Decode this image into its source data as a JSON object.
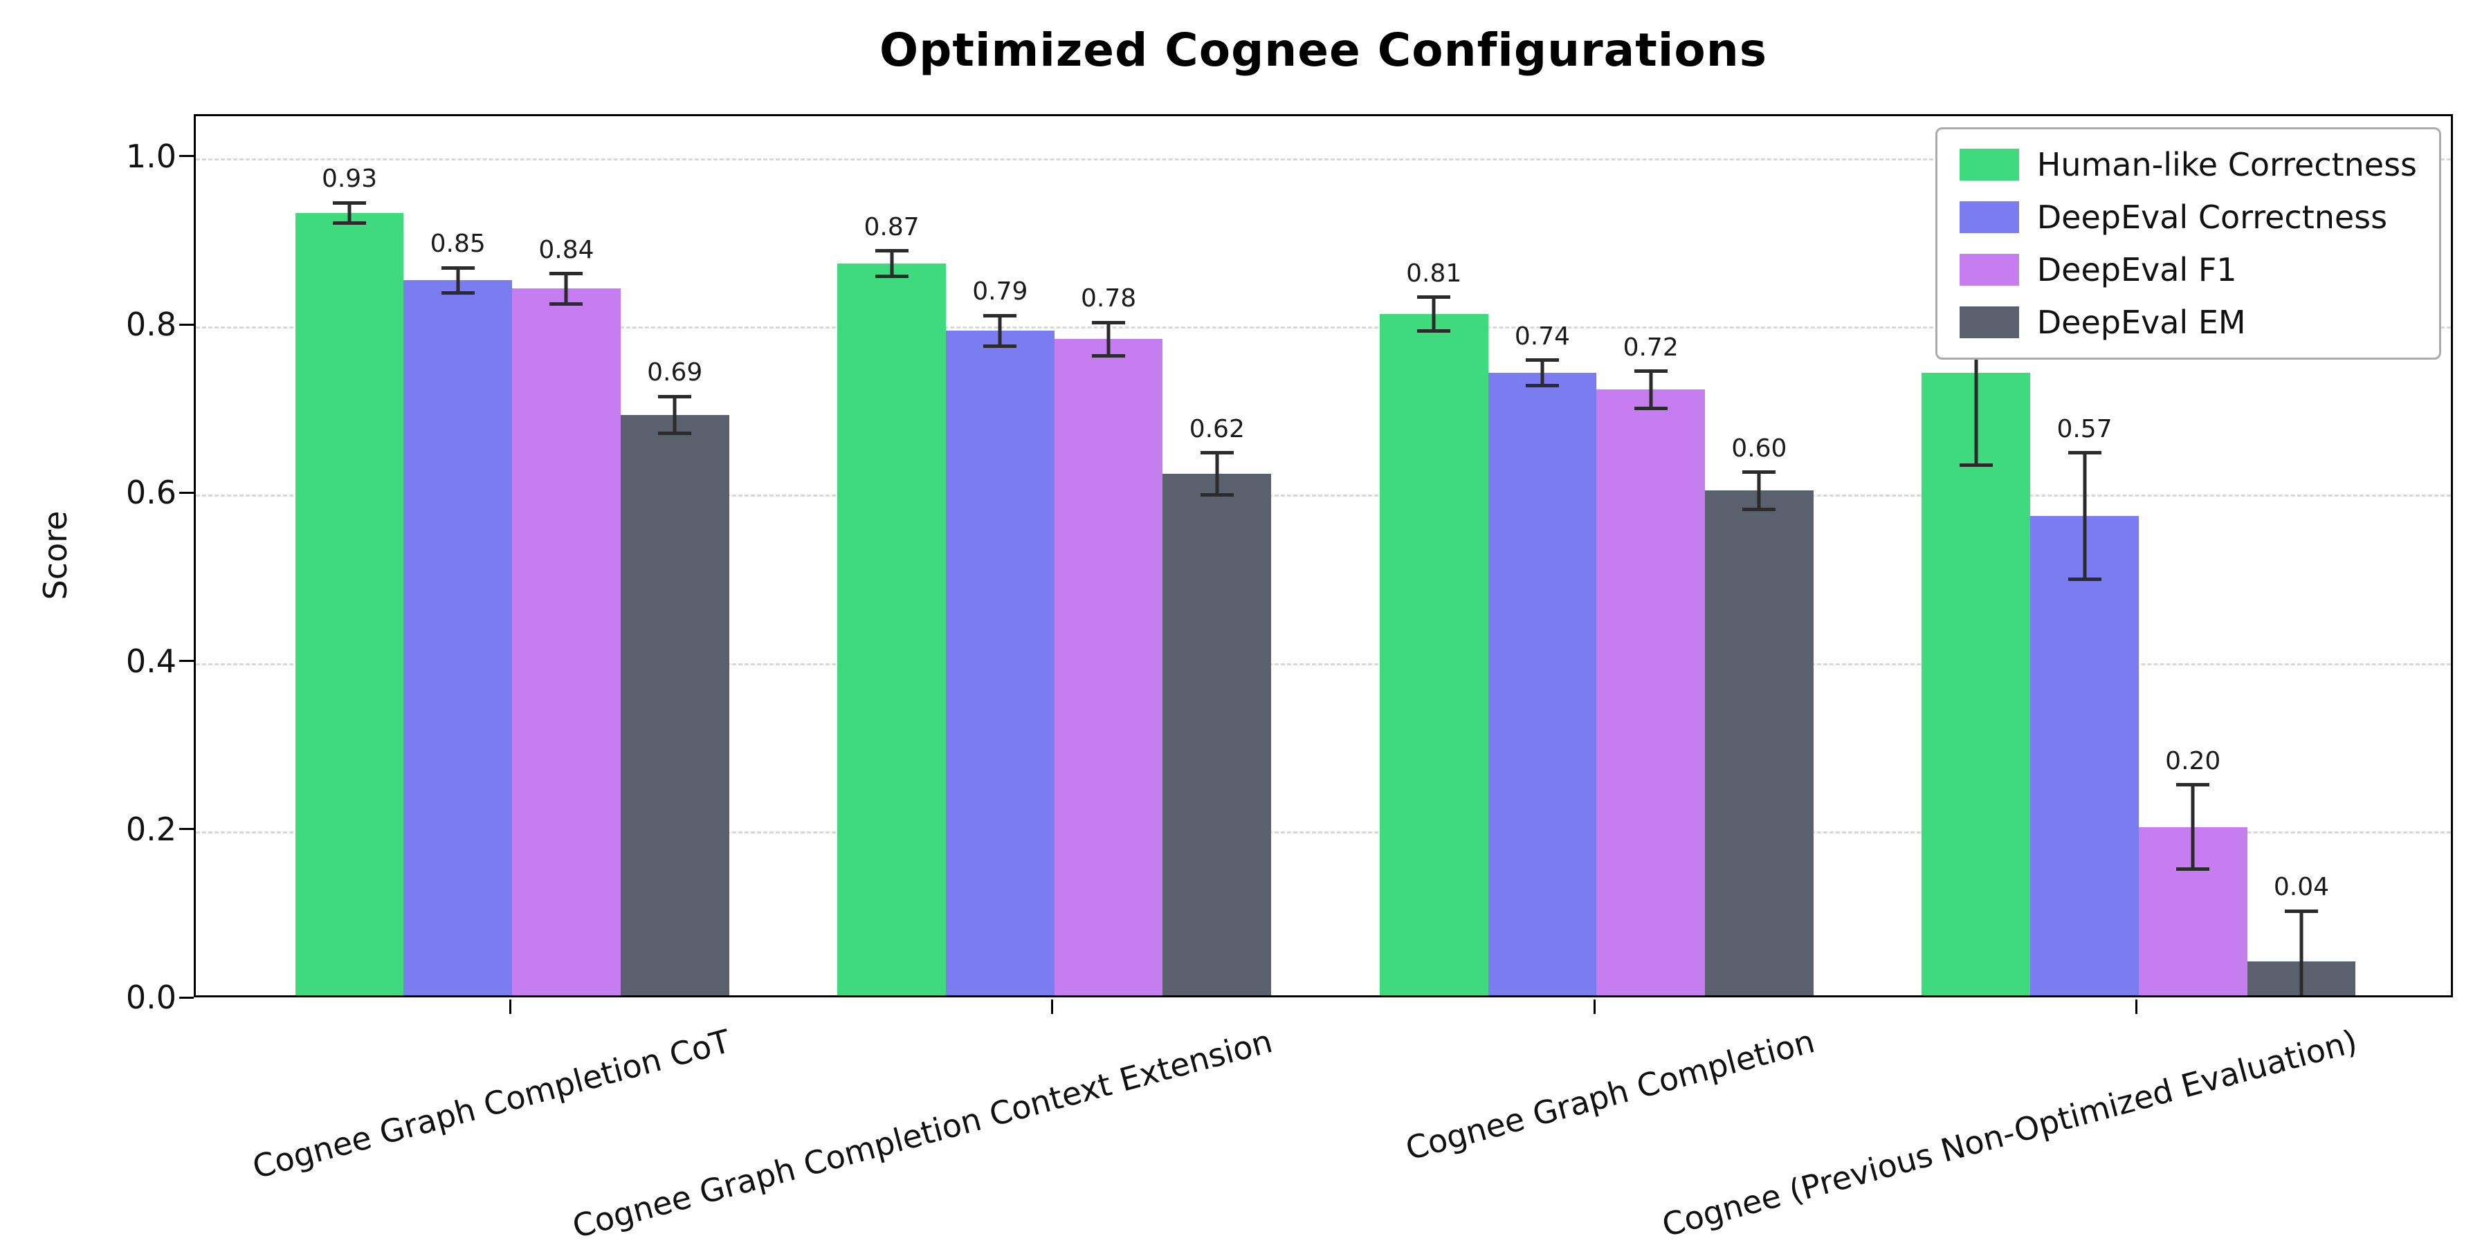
{
  "chart_data": {
    "type": "bar",
    "title": "Optimized Cognee Configurations",
    "xlabel": "",
    "ylabel": "Score",
    "ylim": [
      0,
      1.05
    ],
    "yticks": [
      0.0,
      0.2,
      0.4,
      0.6,
      0.8,
      1.0
    ],
    "grid": "horizontal-dashed",
    "legend_position": "upper-right",
    "categories": [
      "Cognee Graph Completion CoT",
      "Cognee Graph Completion Context Extension",
      "Cognee Graph Completion",
      "Cognee (Previous Non-Optimized Evaluation)"
    ],
    "series": [
      {
        "name": "Human-like Correctness",
        "color": "#3fd97e",
        "values": [
          0.93,
          0.87,
          0.81,
          0.74
        ],
        "errors": [
          0.012,
          0.015,
          0.02,
          0.11
        ]
      },
      {
        "name": "DeepEval Correctness",
        "color": "#7b7cf0",
        "values": [
          0.85,
          0.79,
          0.74,
          0.57
        ],
        "errors": [
          0.015,
          0.018,
          0.015,
          0.075
        ]
      },
      {
        "name": "DeepEval F1",
        "color": "#c67df0",
        "values": [
          0.84,
          0.78,
          0.72,
          0.2
        ],
        "errors": [
          0.018,
          0.02,
          0.022,
          0.05
        ]
      },
      {
        "name": "DeepEval EM",
        "color": "#5b606e",
        "values": [
          0.69,
          0.62,
          0.6,
          0.04
        ],
        "errors": [
          0.022,
          0.025,
          0.022,
          0.06
        ]
      }
    ]
  }
}
